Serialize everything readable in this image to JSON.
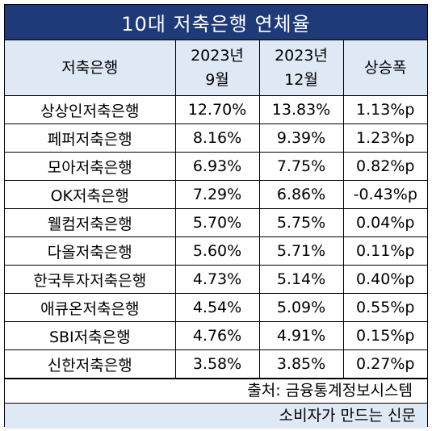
{
  "title": "10대 저축은행 연체율",
  "headers": {
    "bank": "저축은행",
    "sep_year": "2023년",
    "sep_month": "9월",
    "dec_year": "2023년",
    "dec_month": "12월",
    "increase": "상승폭"
  },
  "rows": [
    {
      "bank": "상상인저축은행",
      "sep": "12.70%",
      "dec": "13.83%",
      "increase": "1.13%p"
    },
    {
      "bank": "페퍼저축은행",
      "sep": "8.16%",
      "dec": "9.39%",
      "increase": "1.23%p"
    },
    {
      "bank": "모아저축은행",
      "sep": "6.93%",
      "dec": "7.75%",
      "increase": "0.82%p"
    },
    {
      "bank": "OK저축은행",
      "sep": "7.29%",
      "dec": "6.86%",
      "increase": "-0.43%p"
    },
    {
      "bank": "웰컴저축은행",
      "sep": "5.70%",
      "dec": "5.75%",
      "increase": "0.04%p"
    },
    {
      "bank": "다올저축은행",
      "sep": "5.60%",
      "dec": "5.71%",
      "increase": "0.11%p"
    },
    {
      "bank": "한국투자저축은행",
      "sep": "4.73%",
      "dec": "5.14%",
      "increase": "0.40%p"
    },
    {
      "bank": "애큐온저축은행",
      "sep": "4.54%",
      "dec": "5.09%",
      "increase": "0.55%p"
    },
    {
      "bank": "SBI저축은행",
      "sep": "4.76%",
      "dec": "4.91%",
      "increase": "0.15%p"
    },
    {
      "bank": "신한저축은행",
      "sep": "3.58%",
      "dec": "3.85%",
      "increase": "0.27%p"
    }
  ],
  "source": "출처: 금융통계정보시스템",
  "footer": "소비자가 만드는 신문",
  "colors": {
    "title_bg": "#1f3a78",
    "header_bg": "#dfe9f5",
    "title_text": "#ffffff"
  }
}
